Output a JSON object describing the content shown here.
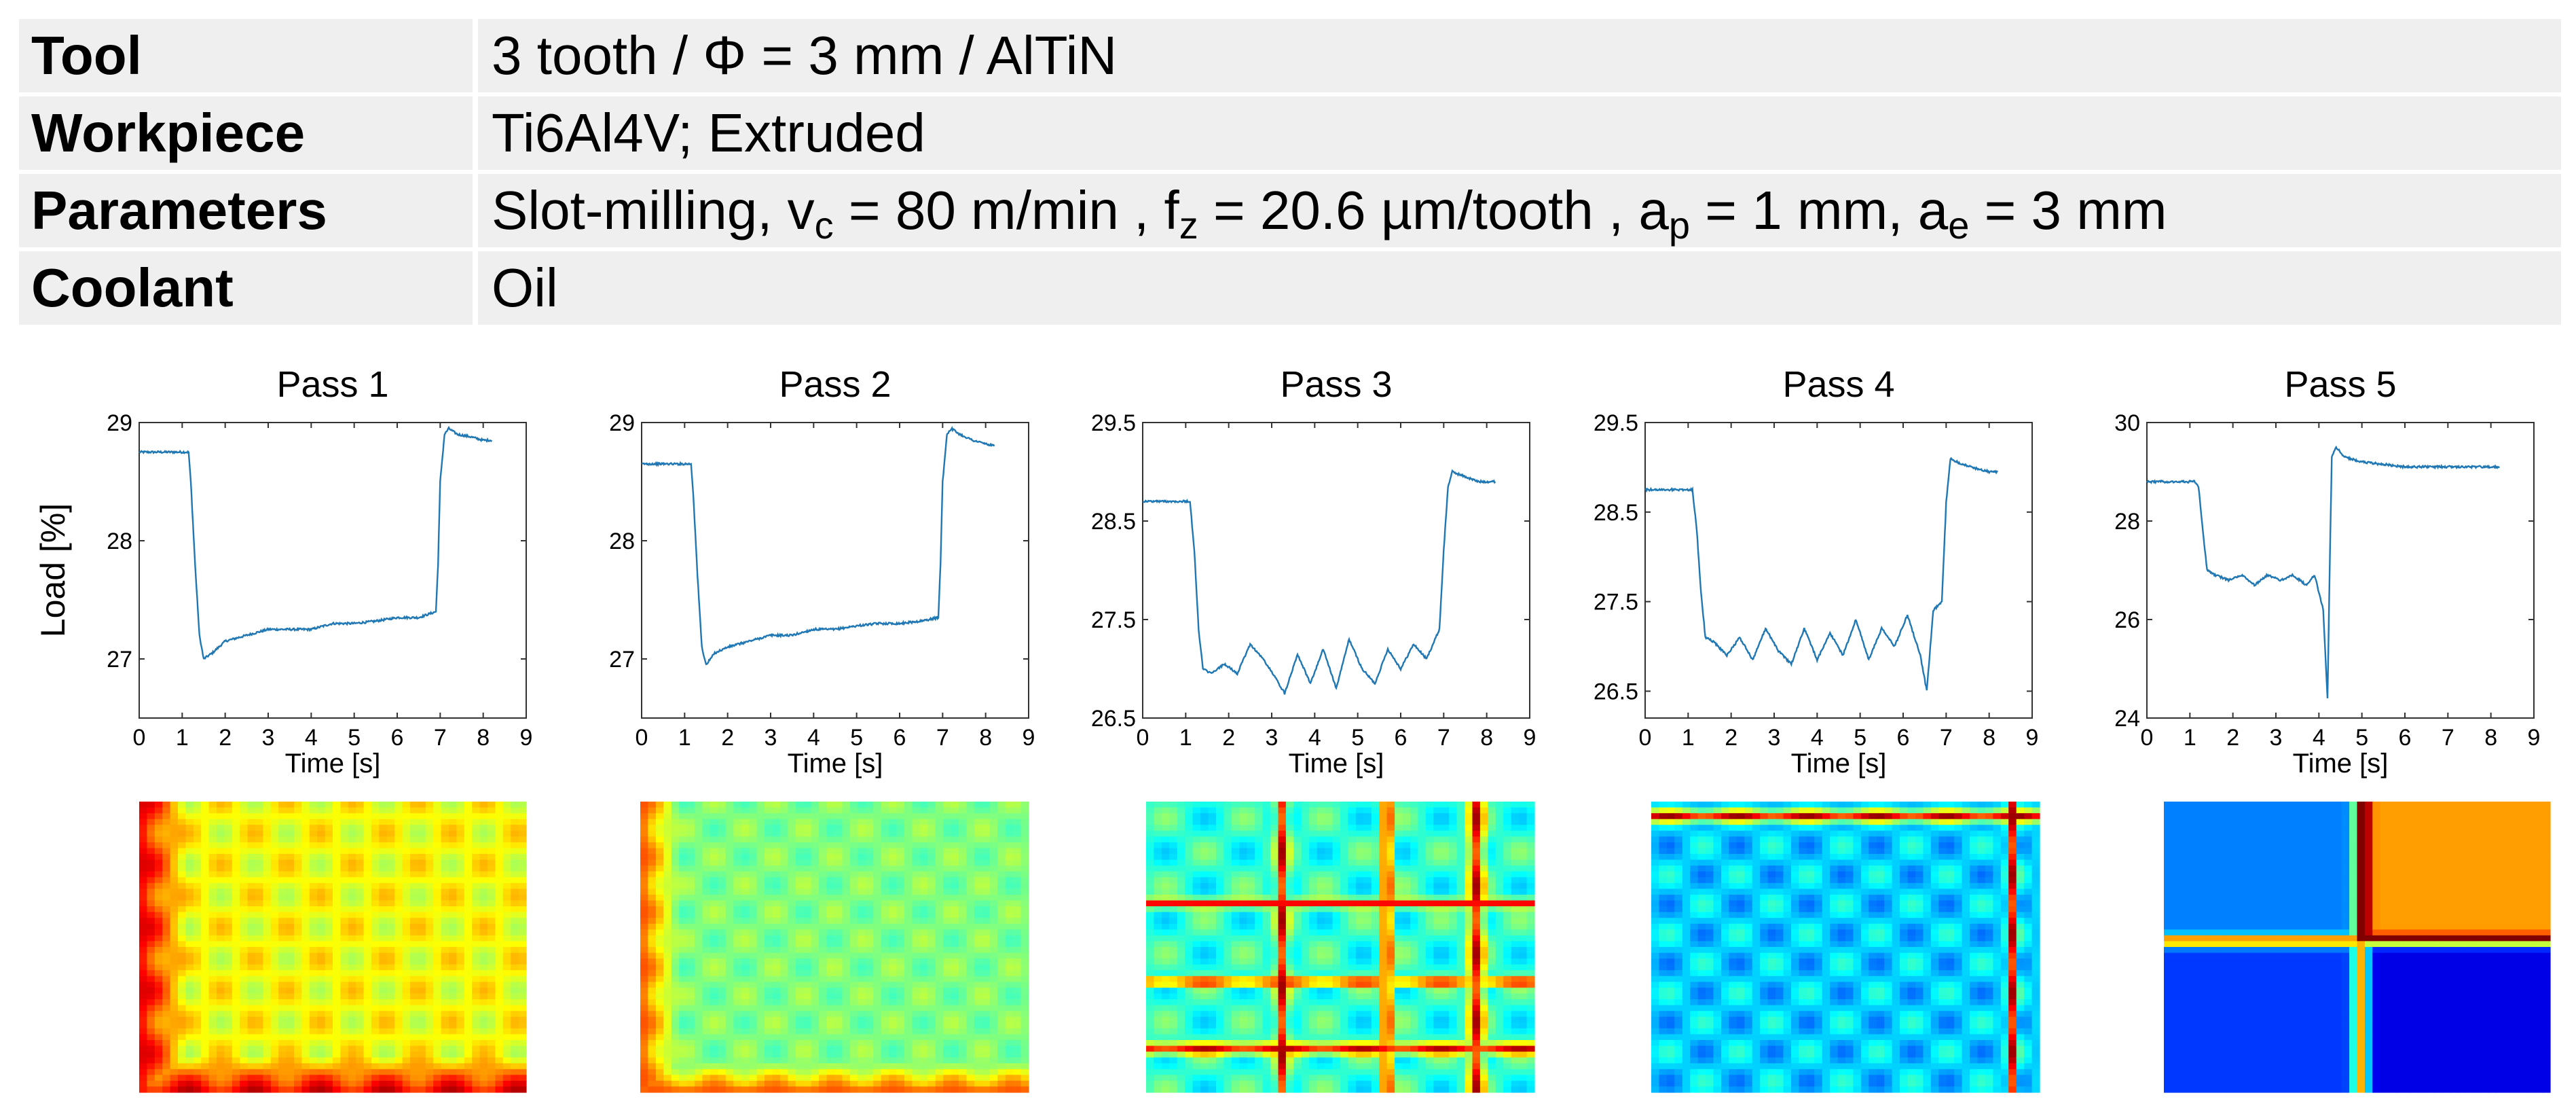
{
  "info_table": [
    {
      "key": "Tool",
      "value_parts": [
        "3 tooth / Φ = 3 mm / AlTiN"
      ]
    },
    {
      "key": "Workpiece",
      "value_parts": [
        "Ti6Al4V; Extruded"
      ]
    },
    {
      "key": "Parameters",
      "value_parts": [
        "Slot-milling, v",
        "c",
        " = 80 m/min , f",
        "z",
        " = 20.6 µm/tooth , a",
        "p",
        " = 1 mm, a",
        "e",
        " = 3 mm"
      ]
    },
    {
      "key": "Coolant",
      "value_parts": [
        "Oil"
      ]
    }
  ],
  "chart_data": [
    {
      "type": "line",
      "title": "Pass 1",
      "xlabel": "Time [s]",
      "ylabel": "Load [%]",
      "xlim": [
        0,
        9
      ],
      "ylim": [
        26.5,
        29
      ],
      "xticks": [
        "0",
        "1",
        "2",
        "3",
        "4",
        "5",
        "6",
        "7",
        "8",
        "9"
      ],
      "yticks": [
        "27",
        "28",
        "29"
      ],
      "ytick_values": [
        27,
        28,
        29
      ],
      "series": [
        {
          "name": "Load",
          "color": "#1f77b4",
          "x": [
            0,
            1.15,
            1.2,
            1.3,
            1.4,
            1.5,
            1.7,
            2.0,
            2.5,
            3.0,
            3.5,
            4.0,
            4.5,
            5.0,
            5.5,
            6.0,
            6.5,
            6.9,
            6.95,
            7.0,
            7.1,
            7.2,
            7.4,
            7.7,
            8.0,
            8.2
          ],
          "y": [
            28.75,
            28.75,
            28.5,
            27.8,
            27.2,
            27.0,
            27.05,
            27.15,
            27.2,
            27.25,
            27.25,
            27.25,
            27.3,
            27.3,
            27.32,
            27.35,
            27.35,
            27.4,
            27.8,
            28.5,
            28.9,
            28.95,
            28.9,
            28.88,
            28.85,
            28.85
          ]
        }
      ]
    },
    {
      "type": "line",
      "title": "Pass 2",
      "xlabel": "Time [s]",
      "ylabel": "",
      "xlim": [
        0,
        9
      ],
      "ylim": [
        26.5,
        29
      ],
      "xticks": [
        "0",
        "1",
        "2",
        "3",
        "4",
        "5",
        "6",
        "7",
        "8",
        "9"
      ],
      "yticks": [
        "27",
        "28",
        "29"
      ],
      "ytick_values": [
        27,
        28,
        29
      ],
      "series": [
        {
          "name": "Load",
          "color": "#1f77b4",
          "x": [
            0,
            1.15,
            1.2,
            1.3,
            1.4,
            1.5,
            1.7,
            2.0,
            2.5,
            3.0,
            3.5,
            4.0,
            4.5,
            5.0,
            5.5,
            6.0,
            6.5,
            6.9,
            6.95,
            7.0,
            7.1,
            7.2,
            7.4,
            7.7,
            8.0,
            8.2
          ],
          "y": [
            28.65,
            28.65,
            28.4,
            27.7,
            27.1,
            26.95,
            27.05,
            27.1,
            27.15,
            27.2,
            27.2,
            27.25,
            27.25,
            27.28,
            27.3,
            27.3,
            27.32,
            27.35,
            27.8,
            28.5,
            28.9,
            28.95,
            28.9,
            28.85,
            28.82,
            28.8
          ]
        }
      ]
    },
    {
      "type": "line",
      "title": "Pass 3",
      "xlabel": "Time [s]",
      "ylabel": "",
      "xlim": [
        0,
        9
      ],
      "ylim": [
        26.5,
        29.5
      ],
      "xticks": [
        "0",
        "1",
        "2",
        "3",
        "4",
        "5",
        "6",
        "7",
        "8",
        "9"
      ],
      "yticks": [
        "26.5",
        "27.5",
        "28.5",
        "29.5"
      ],
      "ytick_values": [
        26.5,
        27.5,
        28.5,
        29.5
      ],
      "series": [
        {
          "name": "Load",
          "color": "#1f77b4",
          "x": [
            0,
            1.1,
            1.2,
            1.3,
            1.4,
            1.6,
            1.9,
            2.2,
            2.5,
            2.8,
            3.1,
            3.3,
            3.6,
            3.9,
            4.2,
            4.5,
            4.8,
            5.1,
            5.4,
            5.7,
            6.0,
            6.3,
            6.6,
            6.9,
            7.0,
            7.1,
            7.2,
            7.5,
            7.8,
            8.2
          ],
          "y": [
            28.7,
            28.7,
            28.2,
            27.4,
            27.0,
            26.95,
            27.05,
            26.95,
            27.25,
            27.1,
            26.9,
            26.75,
            27.15,
            26.85,
            27.2,
            26.8,
            27.3,
            27.0,
            26.85,
            27.2,
            27.0,
            27.25,
            27.1,
            27.4,
            28.2,
            28.85,
            29.0,
            28.95,
            28.9,
            28.9
          ]
        }
      ]
    },
    {
      "type": "line",
      "title": "Pass 4",
      "xlabel": "Time [s]",
      "ylabel": "",
      "xlim": [
        0,
        9
      ],
      "ylim": [
        26.2,
        29.5
      ],
      "xticks": [
        "0",
        "1",
        "2",
        "3",
        "4",
        "5",
        "6",
        "7",
        "8",
        "9"
      ],
      "yticks": [
        "26.5",
        "27.5",
        "28.5",
        "29.5"
      ],
      "ytick_values": [
        26.5,
        27.5,
        28.5,
        29.5
      ],
      "series": [
        {
          "name": "Load",
          "color": "#1f77b4",
          "x": [
            0,
            1.1,
            1.2,
            1.3,
            1.4,
            1.6,
            1.9,
            2.2,
            2.5,
            2.8,
            3.1,
            3.4,
            3.7,
            4.0,
            4.3,
            4.6,
            4.9,
            5.2,
            5.5,
            5.8,
            6.1,
            6.4,
            6.55,
            6.7,
            6.9,
            7.0,
            7.1,
            7.3,
            7.6,
            8.0,
            8.2
          ],
          "y": [
            28.75,
            28.75,
            28.3,
            27.6,
            27.1,
            27.05,
            26.9,
            27.1,
            26.85,
            27.2,
            26.95,
            26.8,
            27.2,
            26.85,
            27.15,
            26.9,
            27.3,
            26.85,
            27.2,
            27.0,
            27.35,
            26.9,
            26.5,
            27.4,
            27.5,
            28.6,
            29.1,
            29.05,
            29.0,
            28.95,
            28.95
          ]
        }
      ]
    },
    {
      "type": "line",
      "title": "Pass 5",
      "xlabel": "Time [s]",
      "ylabel": "",
      "xlim": [
        0,
        9
      ],
      "ylim": [
        24,
        30
      ],
      "xticks": [
        "0",
        "1",
        "2",
        "3",
        "4",
        "5",
        "6",
        "7",
        "8",
        "9"
      ],
      "yticks": [
        "24",
        "26",
        "28",
        "30"
      ],
      "ytick_values": [
        24,
        26,
        28,
        30
      ],
      "series": [
        {
          "name": "Load",
          "color": "#1f77b4",
          "x": [
            0,
            1.1,
            1.2,
            1.3,
            1.4,
            1.6,
            1.9,
            2.2,
            2.5,
            2.8,
            3.1,
            3.4,
            3.7,
            3.9,
            4.1,
            4.2,
            4.25,
            4.3,
            4.4,
            4.6,
            5.0,
            5.5,
            6.0,
            6.5,
            7.0,
            7.5,
            8.0,
            8.2
          ],
          "y": [
            28.8,
            28.8,
            28.7,
            27.8,
            27.0,
            26.9,
            26.8,
            26.9,
            26.7,
            26.9,
            26.8,
            26.9,
            26.7,
            26.9,
            26.2,
            24.4,
            27.0,
            29.3,
            29.5,
            29.3,
            29.2,
            29.15,
            29.1,
            29.1,
            29.1,
            29.1,
            29.1,
            29.1
          ]
        }
      ]
    },
    {
      "type": "heatmap",
      "title": "",
      "colormap": "jet",
      "variant": "pass1"
    },
    {
      "type": "heatmap",
      "title": "",
      "colormap": "jet",
      "variant": "pass2"
    },
    {
      "type": "heatmap",
      "title": "",
      "colormap": "jet",
      "variant": "pass3"
    },
    {
      "type": "heatmap",
      "title": "",
      "colormap": "jet",
      "variant": "pass4"
    },
    {
      "type": "heatmap",
      "title": "",
      "colormap": "jet",
      "variant": "pass5"
    }
  ]
}
